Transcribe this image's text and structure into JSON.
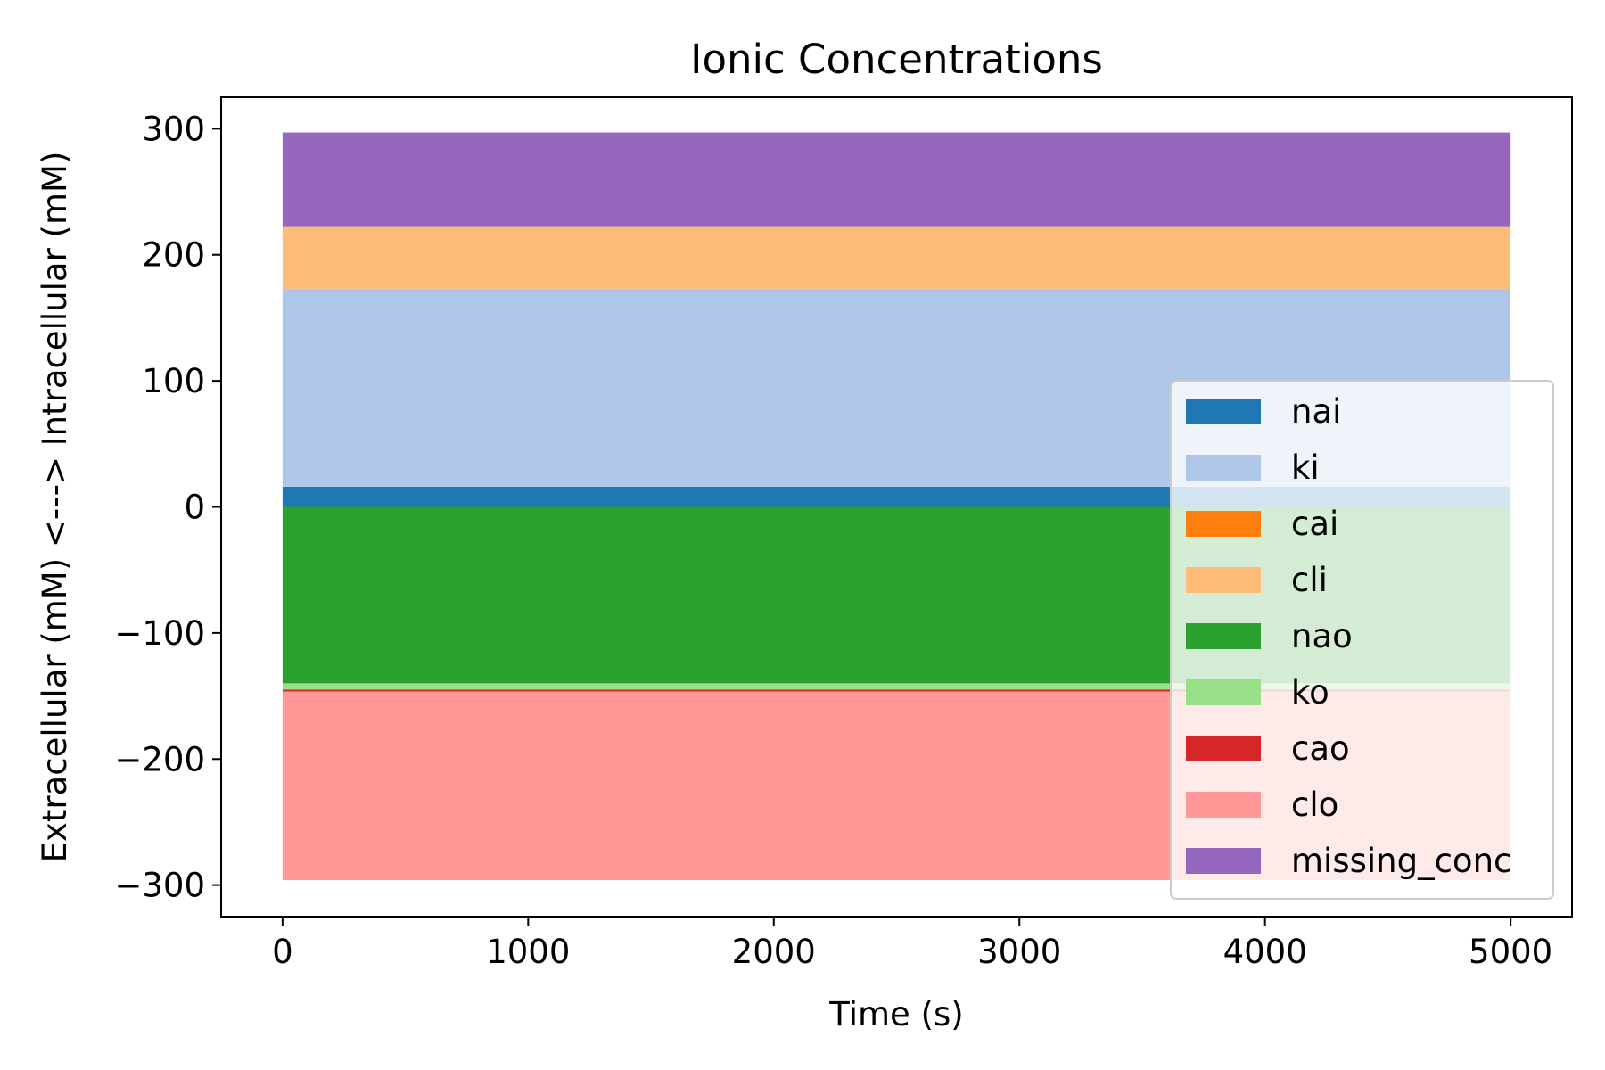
{
  "chart_data": {
    "type": "area",
    "title": "Ionic Concentrations",
    "xlabel": "Time (s)",
    "ylabel": "Extracellular (mM) <---> Intracellular (mM)",
    "x": [
      0,
      5000
    ],
    "xlim": [
      -250,
      5250
    ],
    "ylim": [
      -325,
      325
    ],
    "xticks": [
      0,
      1000,
      2000,
      3000,
      4000,
      5000
    ],
    "xtick_labels": [
      "0",
      "1000",
      "2000",
      "3000",
      "4000",
      "5000"
    ],
    "yticks": [
      300,
      200,
      100,
      0,
      -100,
      -200,
      -300
    ],
    "ytick_labels": [
      "300",
      "200",
      "100",
      "0",
      "−100",
      "−200",
      "−300"
    ],
    "grid": false,
    "legend_position": "lower-right",
    "series": [
      {
        "name": "nai",
        "side": "intracellular",
        "from": 0,
        "to": 16,
        "color": "#1f77b4"
      },
      {
        "name": "ki",
        "side": "intracellular",
        "from": 16,
        "to": 173,
        "color": "#aec7e8"
      },
      {
        "name": "cai",
        "side": "intracellular",
        "from": 173,
        "to": 173,
        "color": "#ff7f0e"
      },
      {
        "name": "cli",
        "side": "intracellular",
        "from": 173,
        "to": 222,
        "color": "#ffbb78"
      },
      {
        "name": "nao",
        "side": "extracellular",
        "from": 0,
        "to": -140,
        "color": "#2ca02c"
      },
      {
        "name": "ko",
        "side": "extracellular",
        "from": -140,
        "to": -145,
        "color": "#98df8a"
      },
      {
        "name": "cao",
        "side": "extracellular",
        "from": -145,
        "to": -146.5,
        "color": "#d62728"
      },
      {
        "name": "clo",
        "side": "extracellular",
        "from": -146.5,
        "to": -296,
        "color": "#ff9896"
      },
      {
        "name": "missing_conc",
        "side": "intracellular",
        "from": 222,
        "to": 297,
        "color": "#9467bd"
      }
    ]
  }
}
